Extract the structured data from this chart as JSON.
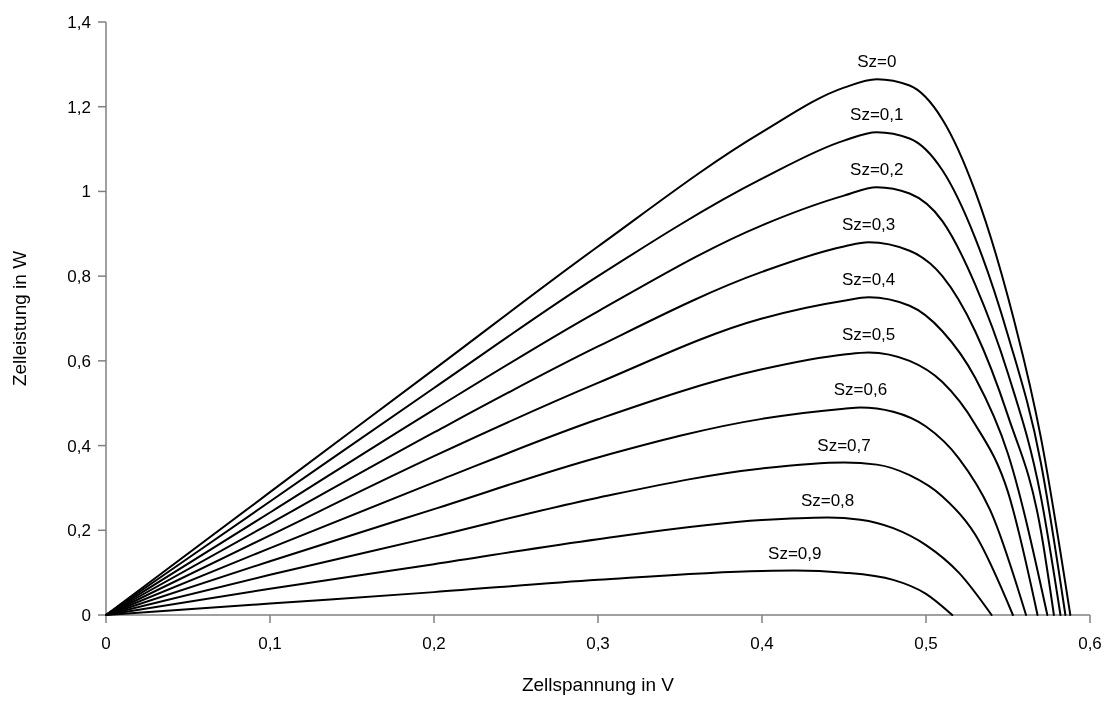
{
  "chart_data": {
    "type": "line",
    "xlabel": "Zellspannung in V",
    "ylabel": "Zelleistung in W",
    "xlim": [
      0,
      0.6
    ],
    "ylim": [
      0,
      1.4
    ],
    "xticks": [
      0,
      {
        "value": 0.1,
        "label": "0,1"
      },
      {
        "value": 0.2,
        "label": "0,2"
      },
      {
        "value": 0.3,
        "label": "0,3"
      },
      {
        "value": 0.4,
        "label": "0,4"
      },
      {
        "value": 0.5,
        "label": "0,5"
      },
      {
        "value": 0.6,
        "label": "0,6"
      }
    ],
    "yticks": [
      0,
      {
        "value": 0.2,
        "label": "0,2"
      },
      {
        "value": 0.4,
        "label": "0,4"
      },
      {
        "value": 0.6,
        "label": "0,6"
      },
      {
        "value": 0.8,
        "label": "0,8"
      },
      1,
      {
        "value": 1.2,
        "label": "1,2"
      },
      {
        "value": 1.4,
        "label": "1,4"
      }
    ],
    "grid": false,
    "legend": false,
    "marker": "none",
    "line_style": "solid",
    "series": [
      {
        "name": "Sz=0",
        "color": "#000000",
        "x": [
          0,
          0.1,
          0.2,
          0.3,
          0.4,
          0.45,
          0.47,
          0.49,
          0.51,
          0.53,
          0.55,
          0.57,
          0.588
        ],
        "values": [
          0,
          0.29,
          0.58,
          0.87,
          1.14,
          1.245,
          1.265,
          1.25,
          1.17,
          1.0,
          0.75,
          0.42,
          0
        ]
      },
      {
        "name": "Sz=0,1",
        "color": "#000000",
        "x": [
          0,
          0.1,
          0.2,
          0.3,
          0.4,
          0.45,
          0.47,
          0.49,
          0.51,
          0.53,
          0.55,
          0.57,
          0.585
        ],
        "values": [
          0,
          0.268,
          0.536,
          0.8,
          1.03,
          1.12,
          1.14,
          1.125,
          1.05,
          0.89,
          0.66,
          0.36,
          0
        ]
      },
      {
        "name": "Sz=0,2",
        "color": "#000000",
        "x": [
          0,
          0.1,
          0.2,
          0.3,
          0.4,
          0.45,
          0.47,
          0.49,
          0.51,
          0.53,
          0.55,
          0.57,
          0.582
        ],
        "values": [
          0,
          0.242,
          0.485,
          0.717,
          0.92,
          0.99,
          1.01,
          0.995,
          0.93,
          0.78,
          0.57,
          0.28,
          0
        ]
      },
      {
        "name": "Sz=0,3",
        "color": "#000000",
        "x": [
          0,
          0.1,
          0.2,
          0.3,
          0.4,
          0.45,
          0.465,
          0.49,
          0.51,
          0.53,
          0.55,
          0.57,
          0.578
        ],
        "values": [
          0,
          0.216,
          0.431,
          0.634,
          0.81,
          0.87,
          0.88,
          0.86,
          0.8,
          0.67,
          0.47,
          0.2,
          0
        ]
      },
      {
        "name": "Sz=0,4",
        "color": "#000000",
        "x": [
          0,
          0.1,
          0.2,
          0.3,
          0.4,
          0.45,
          0.465,
          0.49,
          0.51,
          0.53,
          0.55,
          0.574
        ],
        "values": [
          0,
          0.188,
          0.375,
          0.548,
          0.7,
          0.742,
          0.75,
          0.73,
          0.67,
          0.56,
          0.38,
          0
        ]
      },
      {
        "name": "Sz=0,5",
        "color": "#000000",
        "x": [
          0,
          0.1,
          0.2,
          0.3,
          0.4,
          0.45,
          0.465,
          0.49,
          0.51,
          0.53,
          0.55,
          0.568
        ],
        "values": [
          0,
          0.158,
          0.313,
          0.462,
          0.58,
          0.615,
          0.62,
          0.6,
          0.55,
          0.45,
          0.29,
          0
        ]
      },
      {
        "name": "Sz=0,6",
        "color": "#000000",
        "x": [
          0,
          0.1,
          0.2,
          0.3,
          0.4,
          0.45,
          0.46,
          0.48,
          0.5,
          0.52,
          0.54,
          0.561
        ],
        "values": [
          0,
          0.127,
          0.25,
          0.372,
          0.463,
          0.487,
          0.49,
          0.48,
          0.445,
          0.37,
          0.24,
          0
        ]
      },
      {
        "name": "Sz=0,7",
        "color": "#000000",
        "x": [
          0,
          0.1,
          0.2,
          0.3,
          0.4,
          0.45,
          0.47,
          0.49,
          0.51,
          0.53,
          0.553
        ],
        "values": [
          0,
          0.095,
          0.185,
          0.277,
          0.346,
          0.36,
          0.355,
          0.33,
          0.28,
          0.19,
          0
        ]
      },
      {
        "name": "Sz=0,8",
        "color": "#000000",
        "x": [
          0,
          0.1,
          0.2,
          0.3,
          0.4,
          0.44,
          0.46,
          0.48,
          0.5,
          0.52,
          0.54
        ],
        "values": [
          0,
          0.062,
          0.12,
          0.179,
          0.224,
          0.23,
          0.225,
          0.205,
          0.165,
          0.1,
          0
        ]
      },
      {
        "name": "Sz=0,9",
        "color": "#000000",
        "x": [
          0,
          0.1,
          0.2,
          0.3,
          0.4,
          0.42,
          0.45,
          0.48,
          0.5,
          0.516
        ],
        "values": [
          0,
          0.027,
          0.054,
          0.083,
          0.104,
          0.105,
          0.1,
          0.083,
          0.05,
          0
        ]
      }
    ]
  }
}
